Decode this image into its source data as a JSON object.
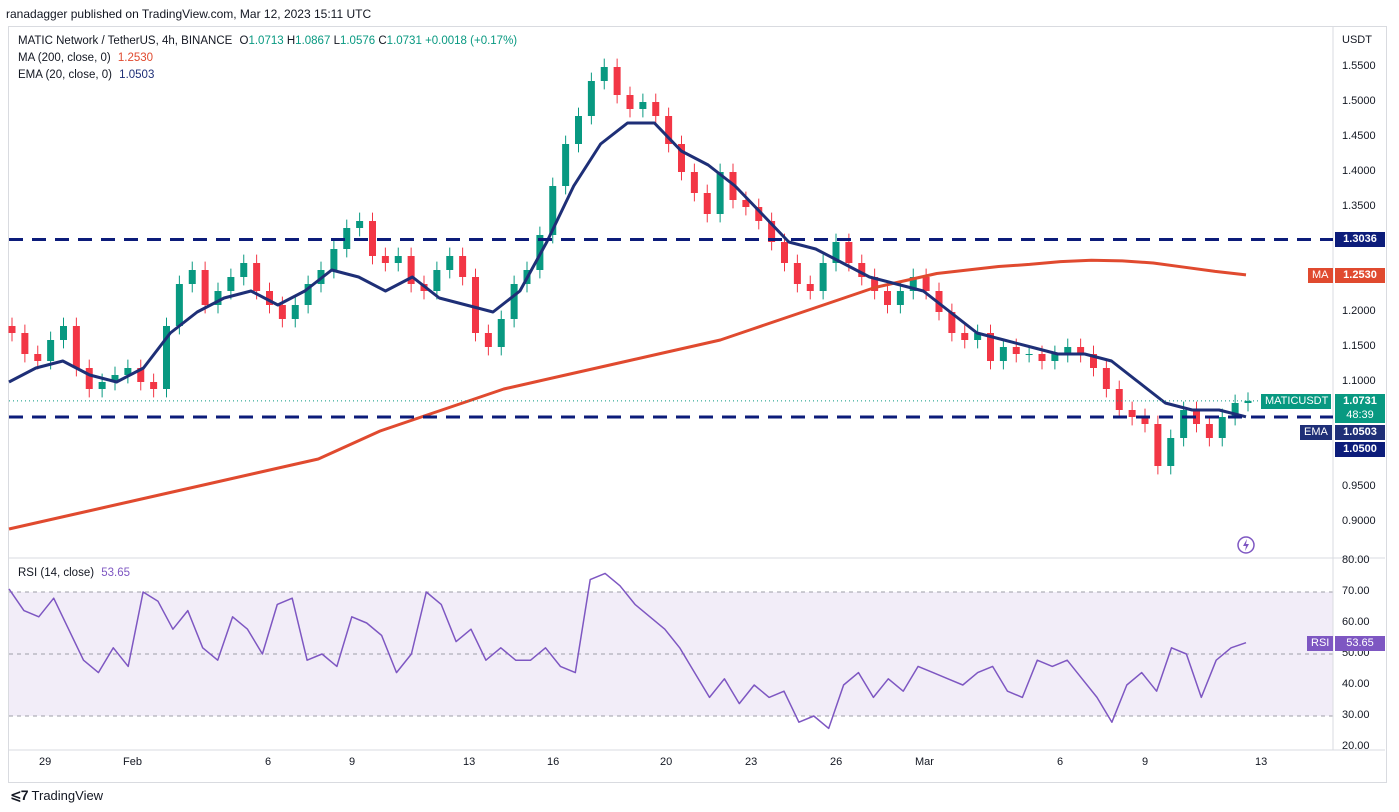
{
  "publisher_line": "ranadagger published on TradingView.com, Mar 12, 2023 15:11 UTC",
  "legend": {
    "symbol": "MATIC Network / TetherUS, 4h, BINANCE",
    "open_label": "O",
    "open": "1.0713",
    "high_label": "H",
    "high": "1.0867",
    "low_label": "L",
    "low": "1.0576",
    "close_label": "C",
    "close": "1.0731",
    "change": "+0.0018 (+0.17%)",
    "ma_label": "MA (200, close, 0)",
    "ma_value": "1.2530",
    "ema_label": "EMA (20, close, 0)",
    "ema_value": "1.0503",
    "rsi_label": "RSI (14, close)",
    "rsi_value": "53.65"
  },
  "price_axis": {
    "unit": "USDT",
    "ticks": [
      "1.5500",
      "1.5000",
      "1.4500",
      "1.4000",
      "1.3500",
      "1.2000",
      "1.1500",
      "1.1000",
      "0.9500",
      "0.9000"
    ]
  },
  "price_tags": {
    "resistance": "1.3036",
    "ma_name": "MA",
    "ma": "1.2530",
    "symbol_name": "MATICUSDT",
    "last": "1.0731",
    "countdown": "48:39",
    "ema_name": "EMA",
    "ema": "1.0503",
    "support": "1.0500"
  },
  "rsi_axis": {
    "ticks": [
      "80.00",
      "70.00",
      "60.00",
      "50.00",
      "40.00",
      "30.00",
      "20.00"
    ],
    "tag_name": "RSI",
    "tag_value": "53.65"
  },
  "time_axis": [
    "29",
    "Feb",
    "6",
    "9",
    "13",
    "16",
    "20",
    "23",
    "26",
    "Mar",
    "6",
    "9",
    "13"
  ],
  "footer": {
    "brand": "TradingView"
  },
  "colors": {
    "up": "#089981",
    "down": "#f23645",
    "ma": "#e04a2f",
    "ema": "#1e2f77",
    "rsi": "#7e57c2",
    "level": "#0c1c7a",
    "band": "#ede7f6"
  },
  "chart_data": {
    "type": "line",
    "title": "MATIC Network / TetherUS, 4h, BINANCE",
    "ylabel": "USDT",
    "ylim": [
      0.87,
      1.58
    ],
    "x_ticks": [
      "29",
      "Feb",
      "6",
      "9",
      "13",
      "16",
      "20",
      "23",
      "26",
      "Mar",
      "6",
      "9",
      "13"
    ],
    "horizontal_levels": [
      1.3036,
      1.05
    ],
    "series": [
      {
        "name": "Price (close)",
        "values": [
          1.17,
          1.14,
          1.13,
          1.16,
          1.18,
          1.12,
          1.09,
          1.1,
          1.11,
          1.12,
          1.1,
          1.09,
          1.18,
          1.24,
          1.26,
          1.21,
          1.23,
          1.25,
          1.27,
          1.23,
          1.21,
          1.19,
          1.21,
          1.24,
          1.26,
          1.29,
          1.32,
          1.33,
          1.28,
          1.27,
          1.28,
          1.24,
          1.23,
          1.26,
          1.28,
          1.25,
          1.17,
          1.15,
          1.19,
          1.24,
          1.26,
          1.31,
          1.38,
          1.44,
          1.48,
          1.53,
          1.55,
          1.51,
          1.49,
          1.5,
          1.48,
          1.44,
          1.4,
          1.37,
          1.34,
          1.4,
          1.36,
          1.35,
          1.33,
          1.3,
          1.27,
          1.24,
          1.23,
          1.27,
          1.3,
          1.27,
          1.25,
          1.23,
          1.21,
          1.23,
          1.25,
          1.23,
          1.2,
          1.17,
          1.16,
          1.17,
          1.13,
          1.15,
          1.14,
          1.14,
          1.13,
          1.14,
          1.15,
          1.14,
          1.12,
          1.09,
          1.06,
          1.05,
          1.04,
          0.98,
          1.02,
          1.06,
          1.04,
          1.02,
          1.05,
          1.07,
          1.0731
        ]
      },
      {
        "name": "MA (200, close, 0)",
        "values": [
          0.89,
          0.9,
          0.91,
          0.92,
          0.93,
          0.94,
          0.95,
          0.96,
          0.97,
          0.98,
          0.99,
          1.01,
          1.03,
          1.045,
          1.06,
          1.075,
          1.09,
          1.1,
          1.11,
          1.12,
          1.13,
          1.14,
          1.15,
          1.16,
          1.175,
          1.19,
          1.205,
          1.22,
          1.235,
          1.245,
          1.255,
          1.26,
          1.265,
          1.268,
          1.272,
          1.274,
          1.273,
          1.27,
          1.264,
          1.258,
          1.253
        ]
      },
      {
        "name": "EMA (20, close, 0)",
        "values": [
          1.1,
          1.12,
          1.13,
          1.11,
          1.1,
          1.12,
          1.17,
          1.2,
          1.22,
          1.23,
          1.21,
          1.23,
          1.26,
          1.25,
          1.23,
          1.25,
          1.22,
          1.21,
          1.2,
          1.23,
          1.3,
          1.38,
          1.44,
          1.47,
          1.47,
          1.43,
          1.41,
          1.38,
          1.34,
          1.3,
          1.29,
          1.27,
          1.25,
          1.24,
          1.23,
          1.2,
          1.17,
          1.16,
          1.15,
          1.14,
          1.14,
          1.13,
          1.1,
          1.07,
          1.06,
          1.06,
          1.0503
        ]
      },
      {
        "name": "RSI (14, close)",
        "values": [
          71,
          64,
          62,
          68,
          58,
          48,
          44,
          52,
          46,
          70,
          67,
          58,
          64,
          52,
          48,
          62,
          58,
          50,
          66,
          68,
          48,
          50,
          46,
          62,
          60,
          56,
          44,
          50,
          70,
          66,
          54,
          58,
          48,
          52,
          48,
          48,
          52,
          46,
          44,
          74,
          76,
          72,
          66,
          62,
          58,
          52,
          44,
          36,
          42,
          34,
          40,
          36,
          38,
          28,
          30,
          26,
          40,
          44,
          36,
          42,
          38,
          46,
          44,
          42,
          40,
          44,
          46,
          38,
          36,
          48,
          46,
          48,
          42,
          36,
          28,
          40,
          44,
          38,
          52,
          50,
          36,
          48,
          52,
          53.65
        ]
      }
    ]
  }
}
